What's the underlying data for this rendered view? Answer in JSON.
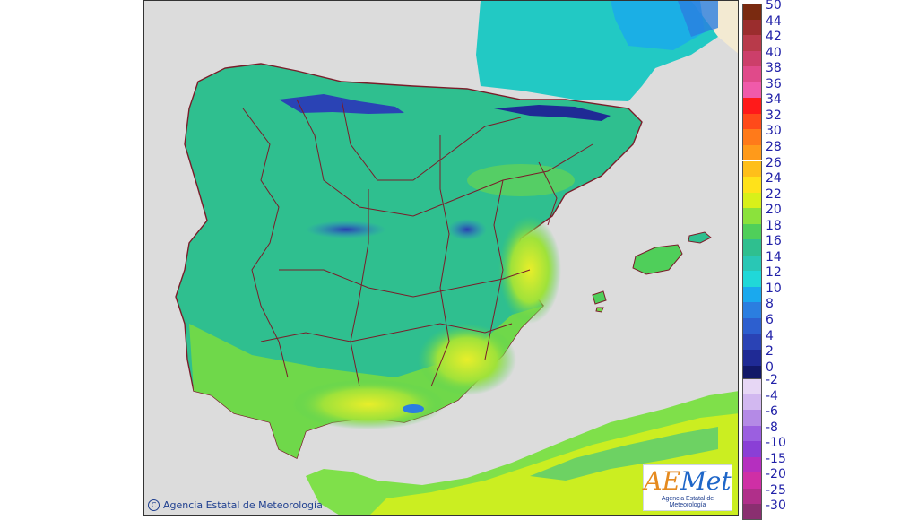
{
  "map": {
    "copyright": "Agencia Estatal de Meteorología",
    "logo_main": "Met",
    "logo_accent": "AE",
    "logo_sub": "Agencia Estatal de Meteorología"
  },
  "legend": {
    "warm": [
      {
        "label": "50",
        "color": "#7a2a10"
      },
      {
        "label": "44",
        "color": "#9b2d2d"
      },
      {
        "label": "42",
        "color": "#b83a4a"
      },
      {
        "label": "40",
        "color": "#cc3f6a"
      },
      {
        "label": "38",
        "color": "#e04a8a"
      },
      {
        "label": "36",
        "color": "#f05aaa"
      },
      {
        "label": "34",
        "color": "#ff1a1a"
      },
      {
        "label": "32",
        "color": "#ff4a1a"
      },
      {
        "label": "30",
        "color": "#ff7a1a"
      },
      {
        "label": "28",
        "color": "#ff9a1a"
      },
      {
        "label": "26",
        "color": "#ffbf1a"
      },
      {
        "label": "24",
        "color": "#ffe21a"
      },
      {
        "label": "22",
        "color": "#d8f01a"
      },
      {
        "label": "20",
        "color": "#8be23c"
      },
      {
        "label": "18",
        "color": "#4fcf5a"
      },
      {
        "label": "16",
        "color": "#2fbf8f"
      },
      {
        "label": "14",
        "color": "#29c7b5"
      },
      {
        "label": "12",
        "color": "#20d8d8"
      },
      {
        "label": "10",
        "color": "#1aa9ee"
      },
      {
        "label": "8",
        "color": "#2b7ee0"
      },
      {
        "label": "6",
        "color": "#2d5fcf"
      },
      {
        "label": "4",
        "color": "#2a43b5"
      },
      {
        "label": "2",
        "color": "#1f2a95"
      },
      {
        "label": "0",
        "color": "#121868"
      }
    ],
    "cold": [
      {
        "label": "-2",
        "color": "#e7d7f5"
      },
      {
        "label": "-4",
        "color": "#d2b8f0"
      },
      {
        "label": "-6",
        "color": "#b48ae6"
      },
      {
        "label": "-8",
        "color": "#9b5fe0"
      },
      {
        "label": "-10",
        "color": "#8a3fd6"
      },
      {
        "label": "-15",
        "color": "#b52fbf"
      },
      {
        "label": "-20",
        "color": "#cf2fa5"
      },
      {
        "label": "-25",
        "color": "#b02f8a"
      },
      {
        "label": "-30",
        "color": "#8a2f70"
      }
    ]
  }
}
